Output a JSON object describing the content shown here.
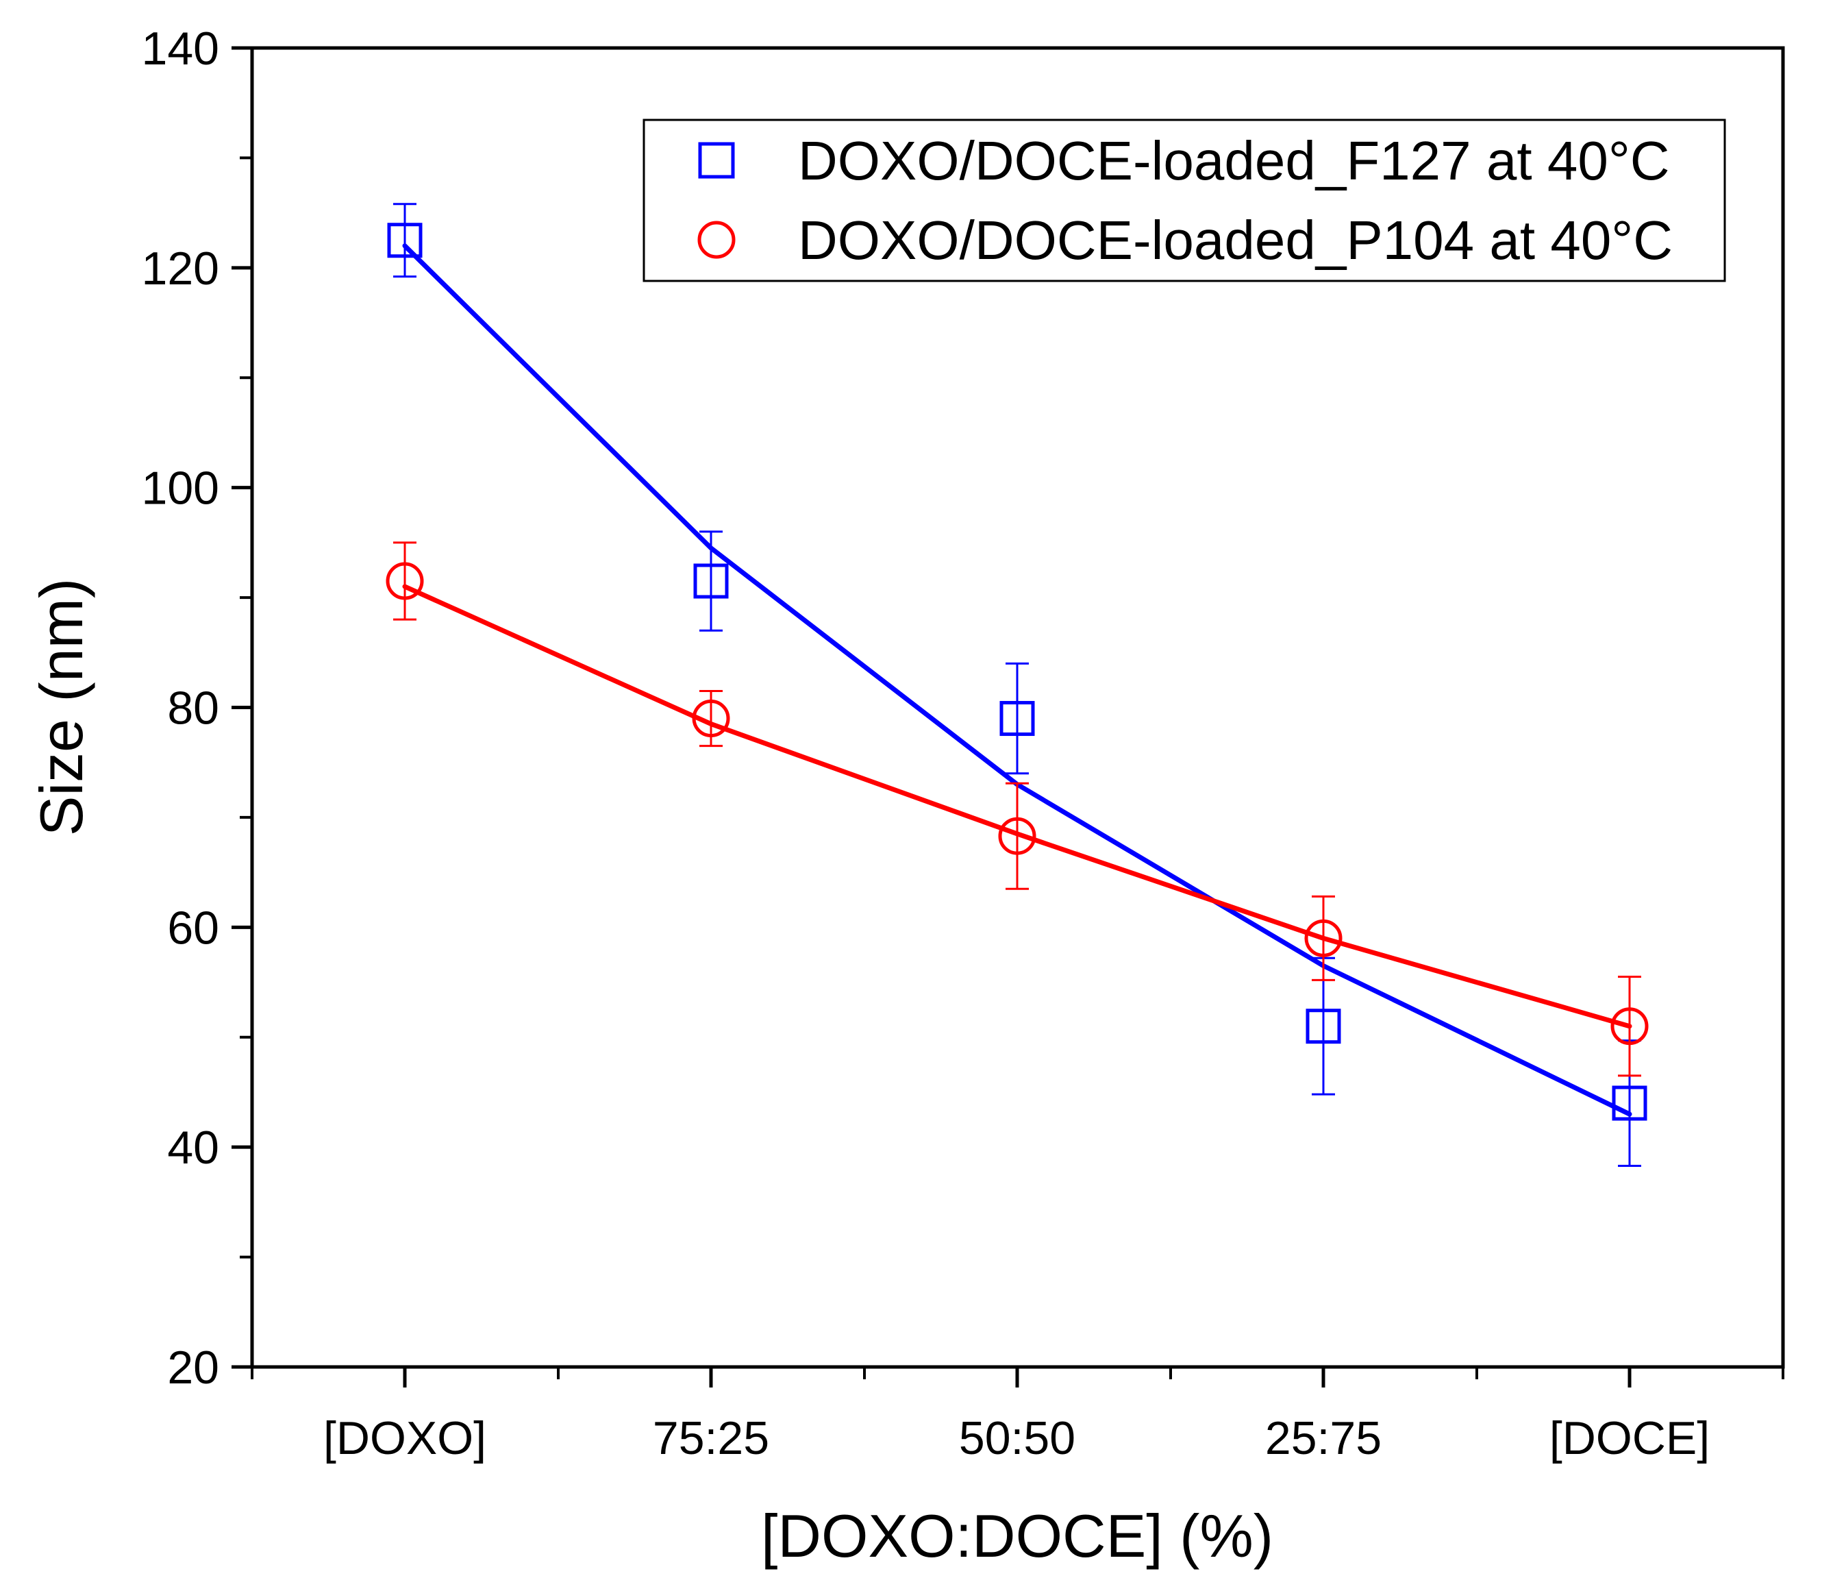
{
  "chart_data": {
    "type": "scatter",
    "xlabel": "[DOXO:DOCE] (%)",
    "ylabel": "Size (nm)",
    "categories": [
      "[DOXO]",
      "75:25",
      "50:50",
      "25:75",
      "[DOCE]"
    ],
    "ylim": [
      20,
      140
    ],
    "yticks": [
      "20",
      "40",
      "60",
      "80",
      "100",
      "120",
      "140"
    ],
    "grid": false,
    "legend_position": "top-right",
    "series": [
      {
        "name": "DOXO/DOCE-loaded_F127 at 40°C",
        "marker": "square",
        "color": "#0000ff",
        "values": [
          122.5,
          91.5,
          79,
          51,
          44
        ],
        "errors": [
          3.3,
          4.5,
          5,
          6.2,
          5.7
        ],
        "fit": [
          122,
          94.5,
          73,
          56.5,
          43
        ]
      },
      {
        "name": "DOXO/DOCE-loaded_P104 at 40°C",
        "marker": "circle",
        "color": "#ff0000",
        "values": [
          91.5,
          79,
          68.3,
          59,
          51
        ],
        "errors": [
          3.5,
          2.5,
          4.8,
          3.8,
          4.5
        ],
        "fit": [
          91,
          78.5,
          68.5,
          59,
          51
        ]
      }
    ]
  }
}
